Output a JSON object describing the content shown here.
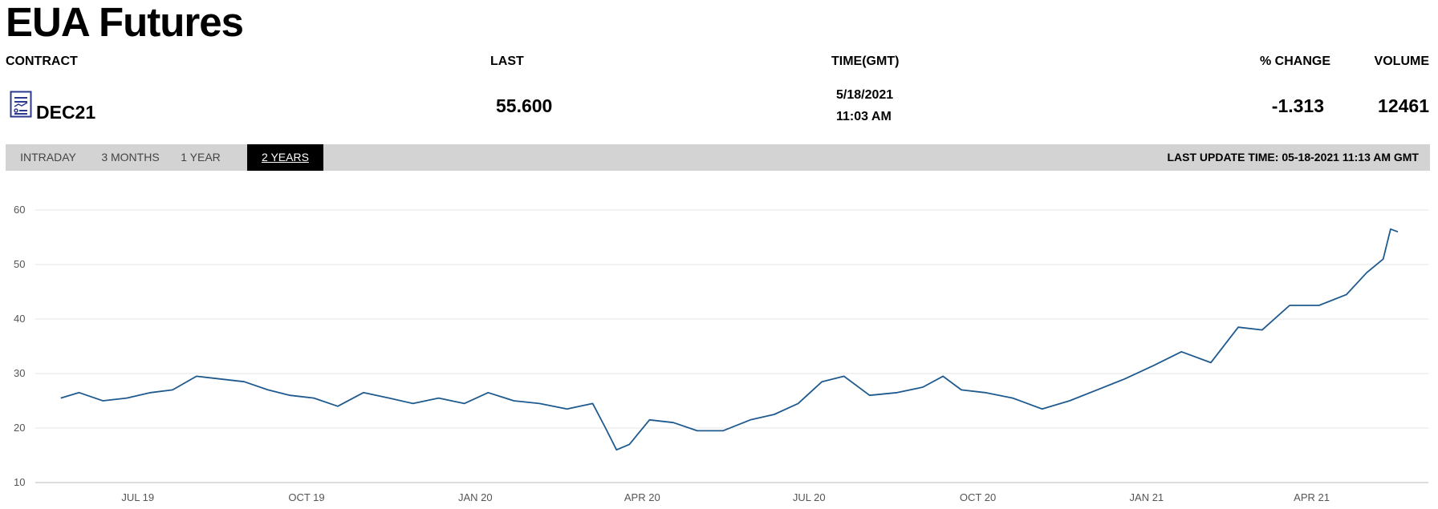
{
  "page": {
    "title": "EUA Futures"
  },
  "headers": {
    "contract": "CONTRACT",
    "last": "LAST",
    "time": "TIME(GMT)",
    "pct_change": "% CHANGE",
    "volume": "VOLUME"
  },
  "row": {
    "contract": "DEC21",
    "last": "55.600",
    "date": "5/18/2021",
    "time": "11:03 AM",
    "pct_change": "-1.313",
    "volume": "12461",
    "icon": "document-chart-icon"
  },
  "tabs": [
    {
      "label": "INTRADAY"
    },
    {
      "label": "3 MONTHS"
    },
    {
      "label": "1 YEAR"
    },
    {
      "label": "2 YEARS"
    }
  ],
  "last_update": "LAST UPDATE TIME: 05-18-2021 11:13 AM GMT",
  "colors": {
    "line": "#1f5a8f",
    "tabbar": "#d3d3d3",
    "active_tab": "#000000"
  },
  "chart_data": {
    "type": "line",
    "ylim": [
      10,
      60
    ],
    "yticks": [
      10,
      20,
      30,
      40,
      50,
      60
    ],
    "grid": true,
    "xticks": [
      "JUL 19",
      "OCT 19",
      "JAN 20",
      "APR 20",
      "JUL 20",
      "OCT 20",
      "JAN 21",
      "APR 21"
    ],
    "x": [
      "2019-05-20",
      "2019-05-30",
      "2019-06-12",
      "2019-06-25",
      "2019-07-08",
      "2019-07-20",
      "2019-08-02",
      "2019-08-15",
      "2019-08-28",
      "2019-09-10",
      "2019-09-22",
      "2019-10-05",
      "2019-10-18",
      "2019-11-01",
      "2019-11-15",
      "2019-11-28",
      "2019-12-12",
      "2019-12-26",
      "2020-01-08",
      "2020-01-22",
      "2020-02-05",
      "2020-02-20",
      "2020-03-05",
      "2020-03-12",
      "2020-03-18",
      "2020-03-25",
      "2020-04-05",
      "2020-04-18",
      "2020-05-01",
      "2020-05-15",
      "2020-05-30",
      "2020-06-12",
      "2020-06-25",
      "2020-07-08",
      "2020-07-20",
      "2020-08-03",
      "2020-08-18",
      "2020-09-01",
      "2020-09-12",
      "2020-09-22",
      "2020-10-05",
      "2020-10-20",
      "2020-11-05",
      "2020-11-20",
      "2020-12-05",
      "2020-12-20",
      "2021-01-05",
      "2021-01-20",
      "2021-02-05",
      "2021-02-20",
      "2021-03-05",
      "2021-03-20",
      "2021-04-05",
      "2021-04-20",
      "2021-05-01",
      "2021-05-10",
      "2021-05-14",
      "2021-05-18"
    ],
    "y": [
      25.5,
      26.5,
      25.0,
      25.5,
      26.5,
      27.0,
      29.5,
      29.0,
      28.5,
      27.0,
      26.0,
      25.5,
      24.0,
      26.5,
      25.5,
      24.5,
      25.5,
      24.5,
      26.5,
      25.0,
      24.5,
      23.5,
      24.5,
      20.0,
      16.0,
      17.0,
      21.5,
      21.0,
      19.5,
      19.5,
      21.5,
      22.5,
      24.5,
      28.5,
      29.5,
      26.0,
      26.5,
      27.5,
      29.5,
      27.0,
      26.5,
      25.5,
      23.5,
      25.0,
      27.0,
      29.0,
      31.5,
      34.0,
      32.0,
      38.5,
      38.0,
      42.5,
      42.5,
      44.5,
      48.5,
      51.0,
      56.5,
      56.0
    ]
  }
}
